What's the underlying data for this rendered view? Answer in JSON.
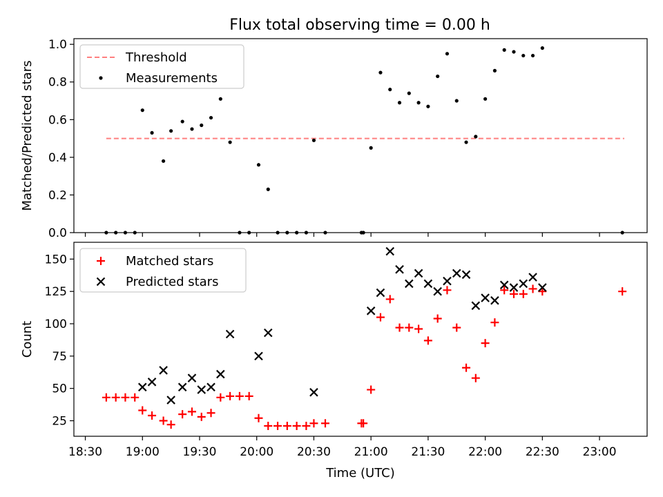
{
  "figure": {
    "title": "Flux total observing time = 0.00 h"
  },
  "chart_data": [
    {
      "type": "scatter",
      "panel": "top",
      "title": "Flux total observing time = 0.00 h",
      "ylabel": "Matched/Predicted stars",
      "xlabel": "",
      "xlim": [
        "18:24",
        "23:25"
      ],
      "ylim": [
        0,
        1.03
      ],
      "yticks": [
        0.0,
        0.2,
        0.4,
        0.6,
        0.8,
        1.0
      ],
      "ytick_labels": [
        "0.0",
        "0.2",
        "0.4",
        "0.6",
        "0.8",
        "1.0"
      ],
      "xticks": [
        "18:30",
        "19:00",
        "19:30",
        "20:00",
        "20:30",
        "21:00",
        "21:30",
        "22:00",
        "22:30",
        "23:00"
      ],
      "legend": {
        "placement": "upper-left",
        "entries": [
          "Threshold",
          "Measurements"
        ]
      },
      "threshold": {
        "name": "Threshold",
        "color": "#ff7f7f",
        "style": "dashed",
        "y": 0.5,
        "x": [
          "18:41",
          "23:13"
        ]
      },
      "series": [
        {
          "name": "Measurements",
          "color": "#000000",
          "marker": "dot",
          "points": [
            [
              "18:41",
              0.0
            ],
            [
              "18:46",
              0.0
            ],
            [
              "18:51",
              0.0
            ],
            [
              "18:56",
              0.0
            ],
            [
              "19:00",
              0.65
            ],
            [
              "19:05",
              0.53
            ],
            [
              "19:11",
              0.38
            ],
            [
              "19:15",
              0.54
            ],
            [
              "19:21",
              0.59
            ],
            [
              "19:26",
              0.55
            ],
            [
              "19:31",
              0.57
            ],
            [
              "19:36",
              0.61
            ],
            [
              "19:41",
              0.71
            ],
            [
              "19:46",
              0.48
            ],
            [
              "19:51",
              0.0
            ],
            [
              "19:56",
              0.0
            ],
            [
              "20:01",
              0.36
            ],
            [
              "20:06",
              0.23
            ],
            [
              "20:11",
              0.0
            ],
            [
              "20:16",
              0.0
            ],
            [
              "20:21",
              0.0
            ],
            [
              "20:26",
              0.0
            ],
            [
              "20:30",
              0.49
            ],
            [
              "20:36",
              0.0
            ],
            [
              "20:55",
              0.0
            ],
            [
              "20:56",
              0.0
            ],
            [
              "21:00",
              0.45
            ],
            [
              "21:05",
              0.85
            ],
            [
              "21:10",
              0.76
            ],
            [
              "21:15",
              0.69
            ],
            [
              "21:20",
              0.74
            ],
            [
              "21:25",
              0.69
            ],
            [
              "21:30",
              0.67
            ],
            [
              "21:35",
              0.83
            ],
            [
              "21:40",
              0.95
            ],
            [
              "21:45",
              0.7
            ],
            [
              "21:50",
              0.48
            ],
            [
              "21:55",
              0.51
            ],
            [
              "22:00",
              0.71
            ],
            [
              "22:05",
              0.86
            ],
            [
              "22:10",
              0.97
            ],
            [
              "22:15",
              0.96
            ],
            [
              "22:20",
              0.94
            ],
            [
              "22:25",
              0.94
            ],
            [
              "22:30",
              0.98
            ],
            [
              "23:12",
              0.0
            ]
          ]
        }
      ]
    },
    {
      "type": "scatter",
      "panel": "bottom",
      "title": "",
      "ylabel": "Count",
      "xlabel": "Time (UTC)",
      "xlim": [
        "18:24",
        "23:25"
      ],
      "ylim": [
        13,
        163
      ],
      "yticks": [
        25,
        50,
        75,
        100,
        125,
        150
      ],
      "ytick_labels": [
        "25",
        "50",
        "75",
        "100",
        "125",
        "150"
      ],
      "xticks": [
        "18:30",
        "19:00",
        "19:30",
        "20:00",
        "20:30",
        "21:00",
        "21:30",
        "22:00",
        "22:30",
        "23:00"
      ],
      "xtick_labels": [
        "18:30",
        "19:00",
        "19:30",
        "20:00",
        "20:30",
        "21:00",
        "21:30",
        "22:00",
        "22:30",
        "23:00"
      ],
      "legend": {
        "placement": "upper-left",
        "entries": [
          "Matched stars",
          "Predicted stars"
        ]
      },
      "series": [
        {
          "name": "Matched stars",
          "color": "#ff0000",
          "marker": "plus",
          "points": [
            [
              "18:41",
              43
            ],
            [
              "18:46",
              43
            ],
            [
              "18:51",
              43
            ],
            [
              "18:56",
              43
            ],
            [
              "19:00",
              33
            ],
            [
              "19:05",
              29
            ],
            [
              "19:11",
              25
            ],
            [
              "19:15",
              22
            ],
            [
              "19:21",
              30
            ],
            [
              "19:26",
              32
            ],
            [
              "19:31",
              28
            ],
            [
              "19:36",
              31
            ],
            [
              "19:41",
              43
            ],
            [
              "19:46",
              44
            ],
            [
              "19:51",
              44
            ],
            [
              "19:56",
              44
            ],
            [
              "20:01",
              27
            ],
            [
              "20:06",
              21
            ],
            [
              "20:11",
              21
            ],
            [
              "20:16",
              21
            ],
            [
              "20:21",
              21
            ],
            [
              "20:26",
              21
            ],
            [
              "20:30",
              23
            ],
            [
              "20:36",
              23
            ],
            [
              "20:55",
              23
            ],
            [
              "20:56",
              23
            ],
            [
              "21:00",
              49
            ],
            [
              "21:05",
              105
            ],
            [
              "21:10",
              119
            ],
            [
              "21:15",
              97
            ],
            [
              "21:20",
              97
            ],
            [
              "21:25",
              96
            ],
            [
              "21:30",
              87
            ],
            [
              "21:35",
              104
            ],
            [
              "21:40",
              126
            ],
            [
              "21:45",
              97
            ],
            [
              "21:50",
              66
            ],
            [
              "21:55",
              58
            ],
            [
              "22:00",
              85
            ],
            [
              "22:05",
              101
            ],
            [
              "22:10",
              126
            ],
            [
              "22:15",
              123
            ],
            [
              "22:20",
              123
            ],
            [
              "22:25",
              127
            ],
            [
              "22:30",
              125
            ],
            [
              "23:12",
              125
            ]
          ]
        },
        {
          "name": "Predicted stars",
          "color": "#000000",
          "marker": "x",
          "points": [
            [
              "19:00",
              51
            ],
            [
              "19:05",
              55
            ],
            [
              "19:11",
              64
            ],
            [
              "19:15",
              41
            ],
            [
              "19:21",
              51
            ],
            [
              "19:26",
              58
            ],
            [
              "19:31",
              49
            ],
            [
              "19:36",
              51
            ],
            [
              "19:41",
              61
            ],
            [
              "19:46",
              92
            ],
            [
              "20:01",
              75
            ],
            [
              "20:06",
              93
            ],
            [
              "20:30",
              47
            ],
            [
              "21:00",
              110
            ],
            [
              "21:05",
              124
            ],
            [
              "21:10",
              156
            ],
            [
              "21:15",
              142
            ],
            [
              "21:20",
              131
            ],
            [
              "21:25",
              139
            ],
            [
              "21:30",
              131
            ],
            [
              "21:35",
              125
            ],
            [
              "21:40",
              133
            ],
            [
              "21:45",
              139
            ],
            [
              "21:50",
              138
            ],
            [
              "21:55",
              114
            ],
            [
              "22:00",
              120
            ],
            [
              "22:05",
              118
            ],
            [
              "22:10",
              130
            ],
            [
              "22:15",
              128
            ],
            [
              "22:20",
              131
            ],
            [
              "22:25",
              136
            ],
            [
              "22:30",
              128
            ]
          ]
        }
      ]
    }
  ]
}
